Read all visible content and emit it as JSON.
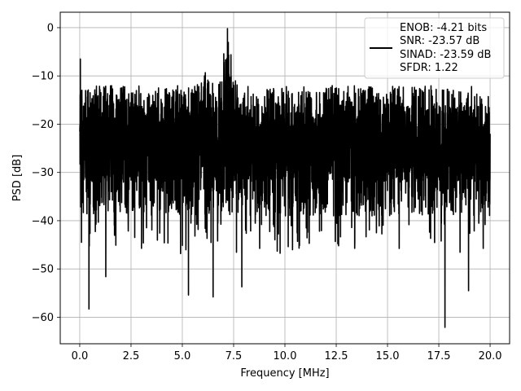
{
  "chart_data": {
    "type": "line",
    "title": "",
    "xlabel": "Frequency [MHz]",
    "ylabel": "PSD [dB]",
    "xlim": [
      -0.95,
      20.95
    ],
    "ylim": [
      -65.5,
      3.2
    ],
    "xticks": [
      0.0,
      2.5,
      5.0,
      7.5,
      10.0,
      12.5,
      15.0,
      17.5,
      20.0
    ],
    "xtick_labels": [
      "0.0",
      "2.5",
      "5.0",
      "7.5",
      "10.0",
      "12.5",
      "15.0",
      "17.5",
      "20.0"
    ],
    "yticks": [
      0,
      -10,
      -20,
      -30,
      -40,
      -50,
      -60
    ],
    "ytick_labels": [
      "0",
      "−10",
      "−20",
      "−30",
      "−40",
      "−50",
      "−60"
    ],
    "grid": true,
    "legend_position": "top-right",
    "series": [
      {
        "color": "#000000",
        "x_range": [
          0,
          20
        ],
        "noise_floor_db": -24,
        "notable_points": [
          {
            "x": 0.03,
            "y": -6.5
          },
          {
            "x": 0.45,
            "y": -58.3
          },
          {
            "x": 1.27,
            "y": -51.6
          },
          {
            "x": 5.3,
            "y": -55.4
          },
          {
            "x": 6.5,
            "y": -55.8
          },
          {
            "x": 7.2,
            "y": -0.2
          },
          {
            "x": 7.9,
            "y": -53.7
          },
          {
            "x": 17.8,
            "y": -62.1
          },
          {
            "x": 18.95,
            "y": -54.5
          },
          {
            "x": 20.0,
            "y": -22.0
          }
        ]
      }
    ],
    "legend": {
      "lines": [
        "ENOB: -4.21 bits",
        "SNR: -23.57 dB",
        "SINAD: -23.59 dB",
        "SFDR: 1.22"
      ]
    }
  }
}
